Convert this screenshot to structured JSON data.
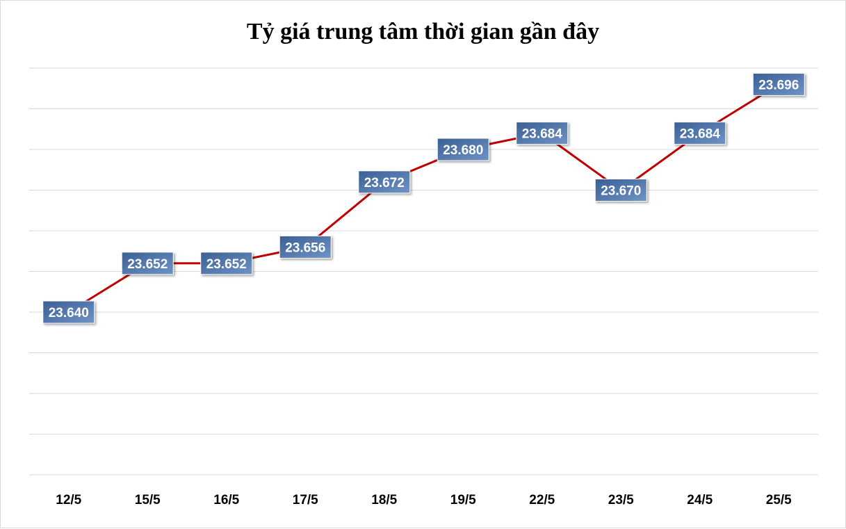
{
  "chart_data": {
    "type": "line",
    "title": "Tỷ giá trung tâm thời gian gần đây",
    "categories": [
      "12/5",
      "15/5",
      "16/5",
      "17/5",
      "18/5",
      "19/5",
      "22/5",
      "23/5",
      "24/5",
      "25/5"
    ],
    "series": [
      {
        "values": [
          23640,
          23652,
          23652,
          23656,
          23672,
          23680,
          23684,
          23670,
          23684,
          23696
        ],
        "labels": [
          "23.640",
          "23.652",
          "23.652",
          "23.656",
          "23.672",
          "23.680",
          "23.684",
          "23.670",
          "23.684",
          "23.696"
        ]
      }
    ],
    "ylim": [
      23600,
      23700
    ],
    "grid": true,
    "legend": "none",
    "line_color": "#c00000",
    "label_color": "#4a71a8"
  }
}
